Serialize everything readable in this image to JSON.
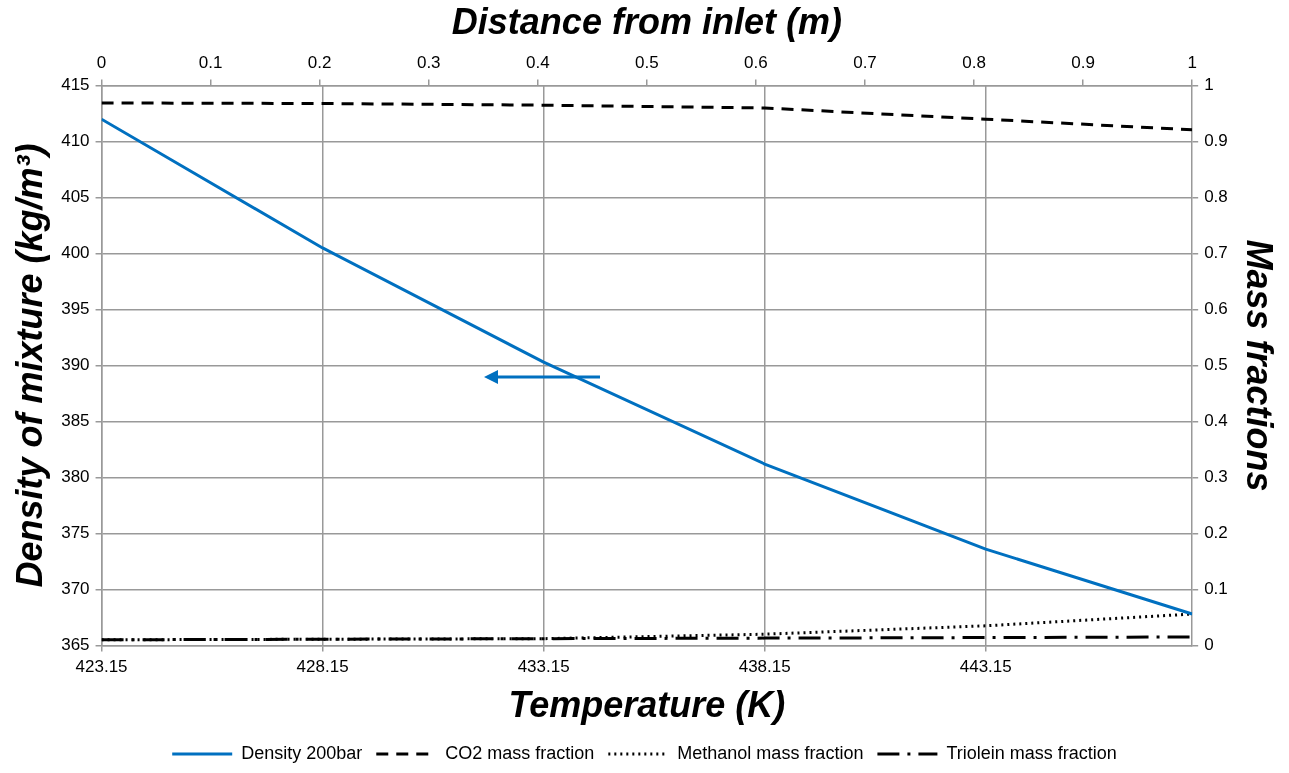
{
  "chart_data": {
    "type": "line",
    "xlabel": "Temperature (K)",
    "x2label": "Distance from inlet (m)",
    "ylabel": "Density of mixture (kg/m³)",
    "y2label": "Mass fractions",
    "xlim": [
      423.15,
      447.82
    ],
    "xticks": [
      423.15,
      428.15,
      433.15,
      438.15,
      443.15
    ],
    "x2lim": [
      0,
      1
    ],
    "x2ticks": [
      0,
      0.1,
      0.2,
      0.3,
      0.4,
      0.5,
      0.6,
      0.7,
      0.8,
      0.9,
      1
    ],
    "ylim": [
      365,
      415
    ],
    "yticks": [
      365,
      370,
      375,
      380,
      385,
      390,
      395,
      400,
      405,
      410,
      415
    ],
    "y2lim": [
      0,
      1
    ],
    "y2ticks": [
      0,
      0.1,
      0.2,
      0.3,
      0.4,
      0.5,
      0.6,
      0.7,
      0.8,
      0.9,
      1
    ],
    "grid": true,
    "legend": "bottom",
    "marker": "none",
    "series": [
      {
        "name": "Density 200bar",
        "color": "#0070c0",
        "line_style": "solid",
        "x": [
          423.15,
          428.15,
          433.15,
          438.15,
          443.15,
          447.82
        ],
        "values": [
          412,
          400.5,
          390.3,
          381.2,
          373.6,
          367.8
        ]
      },
      {
        "name": "CO2 mass fraction",
        "color": "#000000",
        "line_style": "dashed",
        "axis": "y2",
        "x": [
          423.15,
          428.15,
          433.15,
          438.15,
          443.15,
          447.82
        ],
        "values": [
          0.969,
          0.968,
          0.965,
          0.96,
          0.94,
          0.921
        ]
      },
      {
        "name": "Methanol mass fraction",
        "color": "#000000",
        "line_style": "dotted",
        "axis": "y2",
        "x": [
          423.15,
          428.15,
          433.15,
          438.15,
          443.15,
          447.82
        ],
        "values": [
          0.01,
          0.011,
          0.012,
          0.02,
          0.035,
          0.056
        ]
      },
      {
        "name": "Triolein mass fraction",
        "color": "#000000",
        "line_style": "dashdot",
        "axis": "y2",
        "x": [
          423.15,
          428.15,
          433.15,
          438.15,
          443.15,
          447.82
        ],
        "values": [
          0.01,
          0.011,
          0.012,
          0.013,
          0.014,
          0.015
        ]
      }
    ]
  }
}
